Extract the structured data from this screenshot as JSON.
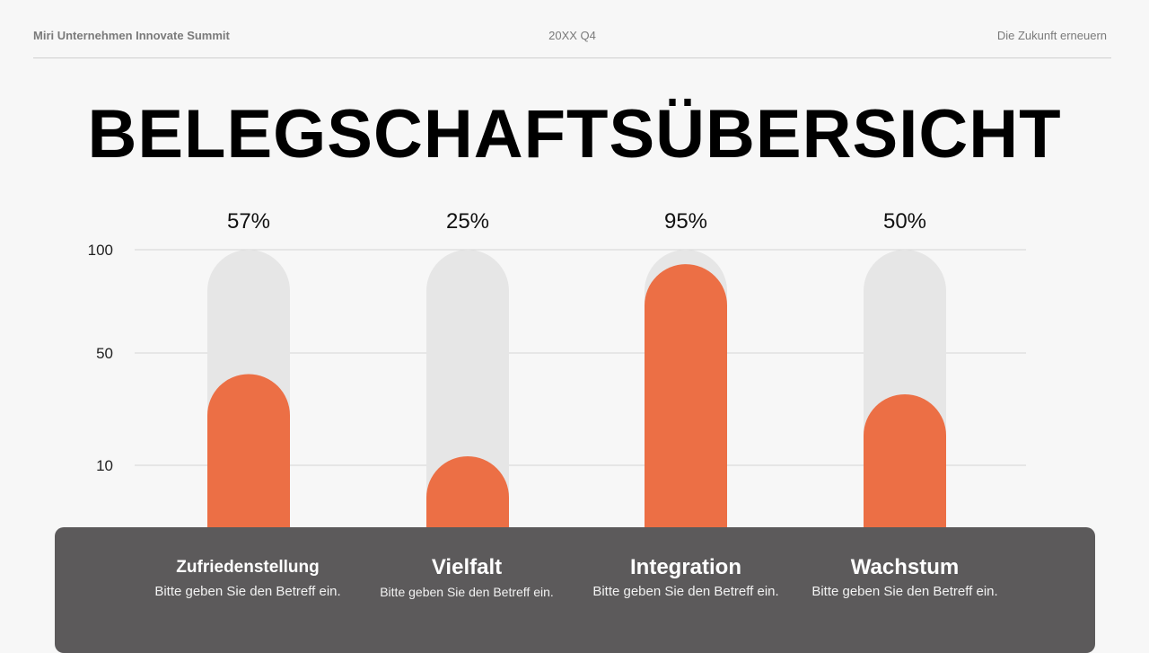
{
  "header": {
    "left_text": "Miri Unternehmen Innovate Summit",
    "center_text": "20XX Q4",
    "right_text": "Die Zukunft erneuern"
  },
  "title": "BELEGSCHAFTSÜBERSICHT",
  "colors": {
    "bar_fill": "#ec6f45",
    "bar_track": "#e6e6e6",
    "panel": "#5c5a5b"
  },
  "chart_data": {
    "type": "bar",
    "categories": [
      "Zufriedenstellung",
      "Vielfalt",
      "Integration",
      "Wachstum"
    ],
    "values": [
      57,
      25,
      95,
      50
    ],
    "value_labels": [
      "57%",
      "25%",
      "95%",
      "50%"
    ],
    "subtitles": [
      "Bitte geben Sie den Betreff ein.",
      "Bitte geben Sie den Betreff ein.",
      "Bitte geben Sie den Betreff ein.",
      "Bitte geben Sie den Betreff ein."
    ],
    "y_ticks": [
      100,
      50,
      10
    ],
    "ylim": [
      0,
      100
    ],
    "grid": true
  }
}
